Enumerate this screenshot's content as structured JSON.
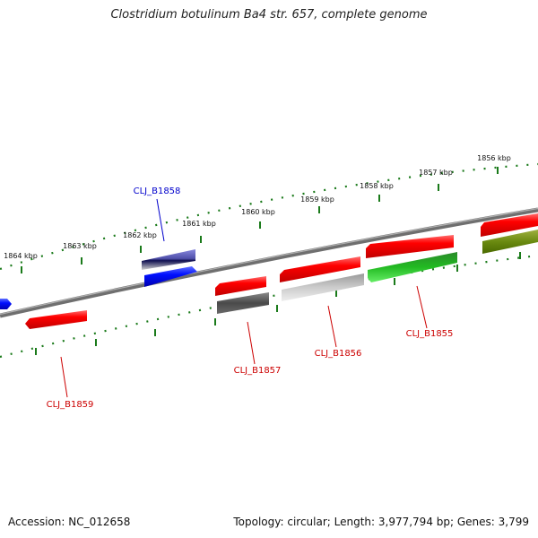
{
  "title": "Clostridium botulinum Ba4 str. 657, complete genome",
  "footer": {
    "accession": "Accession: NC_012658",
    "summary": "Topology: circular; Length: 3,977,794 bp; Genes: 3,799"
  },
  "ticks": [
    "1856 kbp",
    "1857 kbp",
    "1858 kbp",
    "1859 kbp",
    "1860 kbp",
    "1861 kbp",
    "1862 kbp",
    "1863 kbp",
    "1864 kbp"
  ],
  "genes": [
    "CLJ_B1855",
    "CLJ_B1856",
    "CLJ_B1857",
    "CLJ_B1858",
    "CLJ_B1859"
  ],
  "colors": {
    "ruler": "#1a7a1a",
    "backbone": "#7a7a7a",
    "forward_gene": "#ee0000",
    "reverse_gene": "#0000ee",
    "label_red": "#cc0000",
    "label_blue": "#0000cc"
  }
}
